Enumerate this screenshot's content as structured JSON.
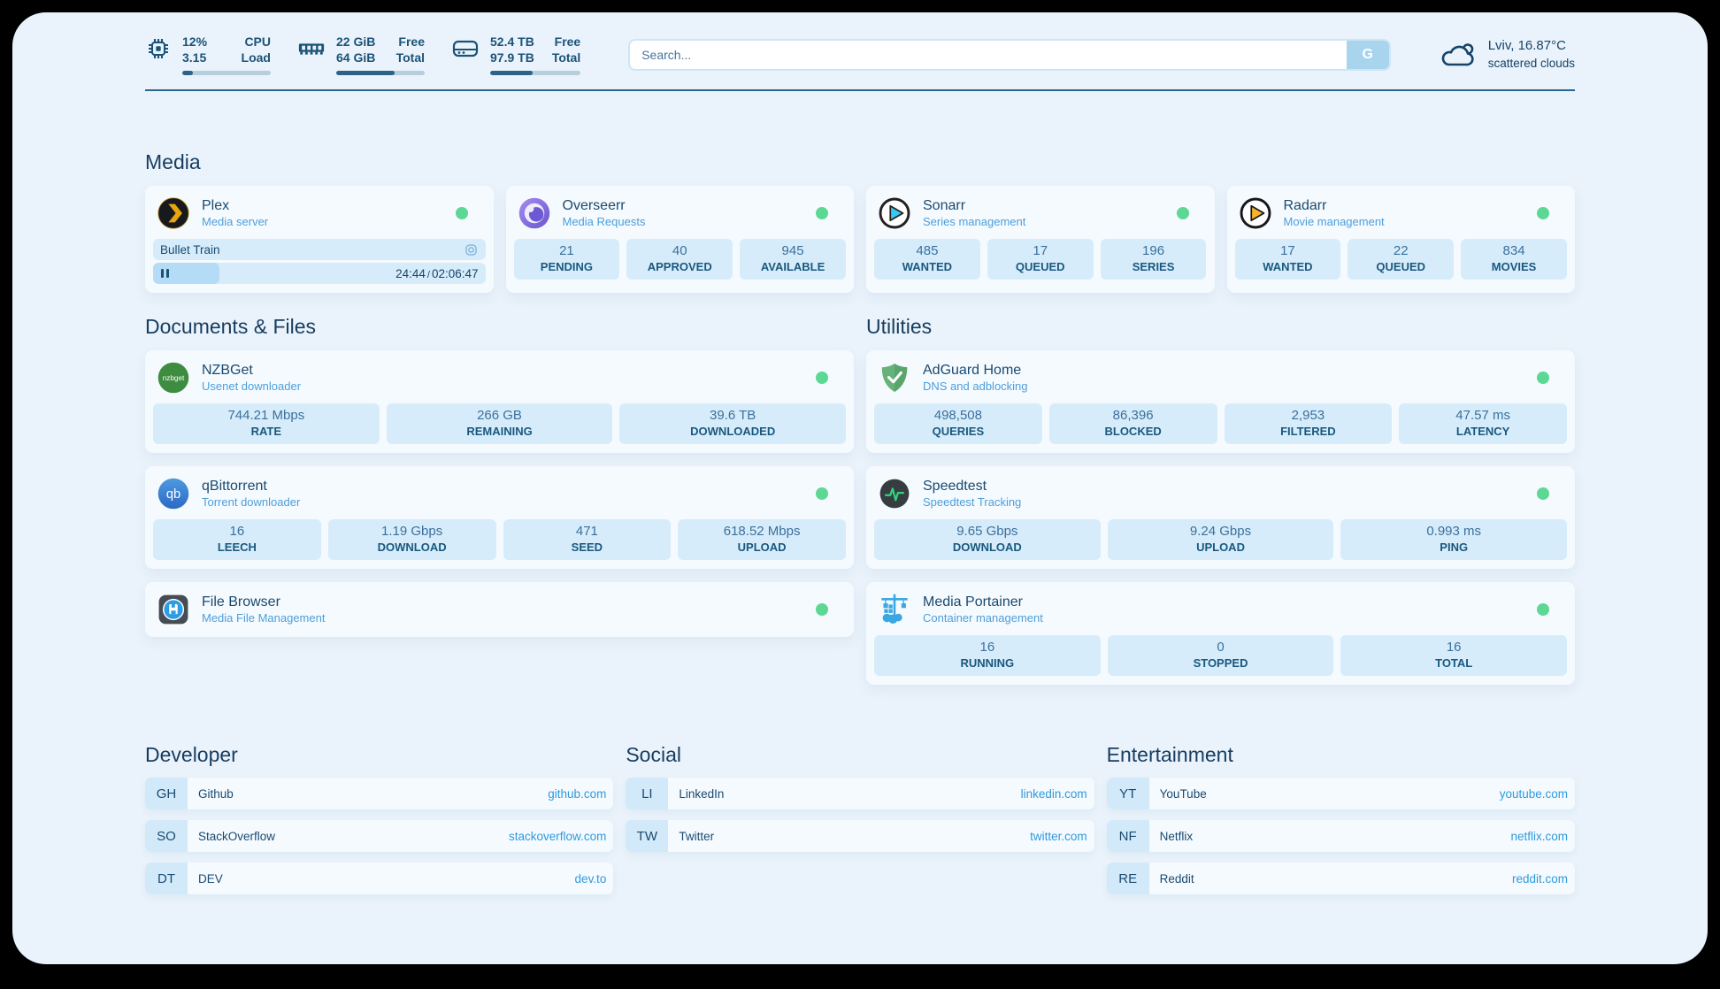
{
  "colors": {
    "accent_green": "#5cd894",
    "link_blue": "#2e9ade",
    "navy": "#1a4a70",
    "page_bg": "#eaf3fb"
  },
  "topbar": {
    "stats": [
      {
        "icon": "cpu-icon",
        "values": [
          "12%",
          "3.15"
        ],
        "labels": [
          "CPU",
          "Load"
        ],
        "progress_pct": 12
      },
      {
        "icon": "ram-icon",
        "values": [
          "22 GiB",
          "64 GiB"
        ],
        "labels": [
          "Free",
          "Total"
        ],
        "progress_pct": 66
      },
      {
        "icon": "disk-icon",
        "values": [
          "52.4 TB",
          "97.9 TB"
        ],
        "labels": [
          "Free",
          "Total"
        ],
        "progress_pct": 47
      }
    ],
    "search": {
      "placeholder": "Search...",
      "button_label": "G"
    },
    "weather": {
      "icon": "cloud-icon",
      "headline": "Lviv, 16.87°C",
      "condition": "scattered clouds"
    }
  },
  "media": {
    "heading": "Media",
    "plex": {
      "title": "Plex",
      "subtitle": "Media server",
      "status": "online",
      "now_playing": {
        "track": "Bullet Train",
        "elapsed": "24:44",
        "time_separator": "/",
        "total": "02:06:47",
        "progress_pct": 20
      }
    },
    "overseerr": {
      "title": "Overseerr",
      "subtitle": "Media Requests",
      "status": "online",
      "stats": [
        {
          "value": "21",
          "label": "PENDING"
        },
        {
          "value": "40",
          "label": "APPROVED"
        },
        {
          "value": "945",
          "label": "AVAILABLE"
        }
      ]
    },
    "sonarr": {
      "title": "Sonarr",
      "subtitle": "Series management",
      "status": "online",
      "stats": [
        {
          "value": "485",
          "label": "WANTED"
        },
        {
          "value": "17",
          "label": "QUEUED"
        },
        {
          "value": "196",
          "label": "SERIES"
        }
      ]
    },
    "radarr": {
      "title": "Radarr",
      "subtitle": "Movie management",
      "status": "online",
      "stats": [
        {
          "value": "17",
          "label": "WANTED"
        },
        {
          "value": "22",
          "label": "QUEUED"
        },
        {
          "value": "834",
          "label": "MOVIES"
        }
      ]
    }
  },
  "documents": {
    "heading": "Documents & Files",
    "nzbget": {
      "title": "NZBGet",
      "subtitle": "Usenet downloader",
      "status": "online",
      "stats": [
        {
          "value": "744.21 Mbps",
          "label": "RATE"
        },
        {
          "value": "266 GB",
          "label": "REMAINING"
        },
        {
          "value": "39.6 TB",
          "label": "DOWNLOADED"
        }
      ]
    },
    "qbittorrent": {
      "title": "qBittorrent",
      "subtitle": "Torrent downloader",
      "status": "online",
      "stats": [
        {
          "value": "16",
          "label": "LEECH"
        },
        {
          "value": "1.19 Gbps",
          "label": "DOWNLOAD"
        },
        {
          "value": "471",
          "label": "SEED"
        },
        {
          "value": "618.52 Mbps",
          "label": "UPLOAD"
        }
      ]
    },
    "filebrowser": {
      "title": "File Browser",
      "subtitle": "Media File Management",
      "status": "online"
    }
  },
  "utilities": {
    "heading": "Utilities",
    "adguard": {
      "title": "AdGuard Home",
      "subtitle": "DNS and adblocking",
      "status": "online",
      "stats": [
        {
          "value": "498,508",
          "label": "QUERIES"
        },
        {
          "value": "86,396",
          "label": "BLOCKED"
        },
        {
          "value": "2,953",
          "label": "FILTERED"
        },
        {
          "value": "47.57 ms",
          "label": "LATENCY"
        }
      ]
    },
    "speedtest": {
      "title": "Speedtest",
      "subtitle": "Speedtest Tracking",
      "status": "online",
      "stats": [
        {
          "value": "9.65 Gbps",
          "label": "DOWNLOAD"
        },
        {
          "value": "9.24 Gbps",
          "label": "UPLOAD"
        },
        {
          "value": "0.993 ms",
          "label": "PING"
        }
      ]
    },
    "portainer": {
      "title": "Media Portainer",
      "subtitle": "Container management",
      "status": "online",
      "stats": [
        {
          "value": "16",
          "label": "RUNNING"
        },
        {
          "value": "0",
          "label": "STOPPED"
        },
        {
          "value": "16",
          "label": "TOTAL"
        }
      ]
    }
  },
  "bookmarks": [
    {
      "heading": "Developer",
      "links": [
        {
          "tag": "GH",
          "name": "Github",
          "url": "github.com"
        },
        {
          "tag": "SO",
          "name": "StackOverflow",
          "url": "stackoverflow.com"
        },
        {
          "tag": "DT",
          "name": "DEV",
          "url": "dev.to"
        }
      ]
    },
    {
      "heading": "Social",
      "links": [
        {
          "tag": "LI",
          "name": "LinkedIn",
          "url": "linkedin.com"
        },
        {
          "tag": "TW",
          "name": "Twitter",
          "url": "twitter.com"
        }
      ]
    },
    {
      "heading": "Entertainment",
      "links": [
        {
          "tag": "YT",
          "name": "YouTube",
          "url": "youtube.com"
        },
        {
          "tag": "NF",
          "name": "Netflix",
          "url": "netflix.com"
        },
        {
          "tag": "RE",
          "name": "Reddit",
          "url": "reddit.com"
        }
      ]
    }
  ]
}
